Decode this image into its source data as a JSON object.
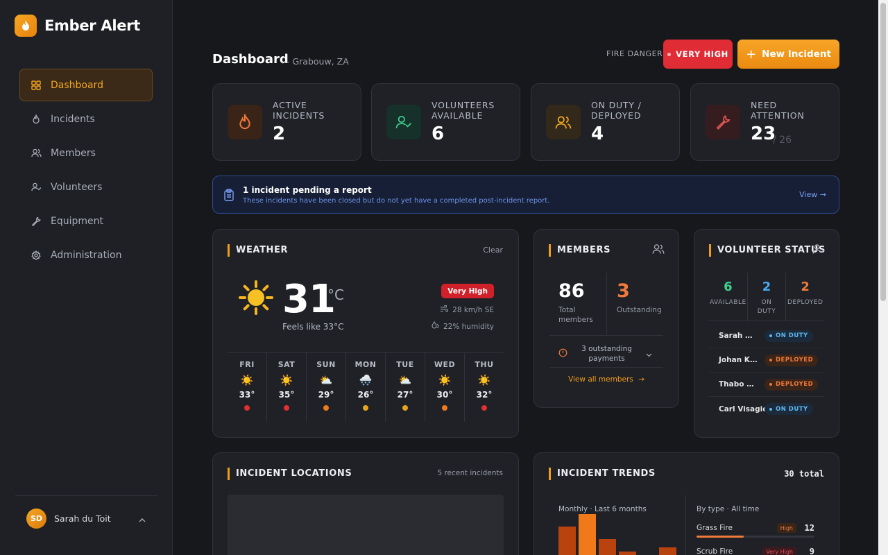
{
  "app": {
    "name": "Ember Alert"
  },
  "sidebar": {
    "items": [
      {
        "label": "Dashboard",
        "icon": "grid-icon",
        "active": true
      },
      {
        "label": "Incidents",
        "icon": "flame-icon"
      },
      {
        "label": "Members",
        "icon": "users-icon"
      },
      {
        "label": "Volunteers",
        "icon": "user-check-icon"
      },
      {
        "label": "Equipment",
        "icon": "wrench-icon"
      },
      {
        "label": "Administration",
        "icon": "gear-icon"
      }
    ],
    "user": {
      "initials": "SD",
      "name": "Sarah du Toit"
    }
  },
  "header": {
    "title": "Dashboard",
    "location": "— Grabouw, ZA",
    "fire_danger_label": "FIRE DANGER",
    "fire_danger_value": "VERY HIGH",
    "new_incident_label": "New Incident"
  },
  "stats": [
    {
      "label": "ACTIVE INCIDENTS",
      "value": "2",
      "color": "#f07a3a"
    },
    {
      "label": "VOLUNTEERS AVAILABLE",
      "value": "6",
      "color": "#3ecf8e"
    },
    {
      "label": "ON DUTY / DEPLOYED",
      "value": "4",
      "color": "#f5a623"
    },
    {
      "label": "NEED ATTENTION",
      "value": "23",
      "sub": "/ 26",
      "color": "#e25555"
    }
  ],
  "notice": {
    "title": "1 incident pending a report",
    "subtitle": "These incidents have been closed but do not yet have a completed post-incident report.",
    "link": "View →"
  },
  "weather": {
    "title": "WEATHER",
    "condition": "Clear",
    "temp": "31",
    "unit": "°C",
    "feels": "Feels like 33°C",
    "danger": "Very High",
    "wind": "28 km/h SE",
    "humidity": "22% humidity",
    "forecast": [
      {
        "day": "FRI",
        "icon": "☀️",
        "temp": "33°",
        "color": "#e0302f"
      },
      {
        "day": "SAT",
        "icon": "☀️",
        "temp": "35°",
        "color": "#e0302f"
      },
      {
        "day": "SUN",
        "icon": "⛅",
        "temp": "29°",
        "color": "#f07a1a"
      },
      {
        "day": "MON",
        "icon": "🌨️",
        "temp": "26°",
        "color": "#e8a31a"
      },
      {
        "day": "TUE",
        "icon": "⛅",
        "temp": "27°",
        "color": "#e8a31a"
      },
      {
        "day": "WED",
        "icon": "☀️",
        "temp": "30°",
        "color": "#f07a1a"
      },
      {
        "day": "THU",
        "icon": "☀️",
        "temp": "32°",
        "color": "#e0302f"
      }
    ]
  },
  "members": {
    "title": "MEMBERS",
    "total": "86",
    "total_label": "Total members",
    "outstanding": "3",
    "outstanding_label": "Outstanding",
    "payments": "3 outstanding payments",
    "link": "View all members"
  },
  "volunteer_status": {
    "title": "VOLUNTEER STATUS",
    "stats": [
      {
        "value": "6",
        "label": "AVAILABLE",
        "color": "#3ecf8e"
      },
      {
        "value": "2",
        "label": "ON DUTY",
        "color": "#4aa8f0"
      },
      {
        "value": "2",
        "label": "DEPLOYED",
        "color": "#f07a3a"
      }
    ],
    "rows": [
      {
        "name": "Sarah du Toit",
        "status": "ON DUTY",
        "kind": "duty"
      },
      {
        "name": "Johan Kruger",
        "status": "DEPLOYED",
        "kind": "dep"
      },
      {
        "name": "Thabo Nkosi",
        "status": "DEPLOYED",
        "kind": "dep"
      },
      {
        "name": "Carl Visagie",
        "status": "ON DUTY",
        "kind": "duty"
      }
    ]
  },
  "locations": {
    "title": "INCIDENT LOCATIONS",
    "meta": "5 recent incidents"
  },
  "trends": {
    "title": "INCIDENT TRENDS",
    "total": "30 total",
    "monthly_label": "Monthly · Last 6 months",
    "bytype_label": "By type · All time",
    "monthly_values": [
      {
        "value": 7,
        "color": "#b8430e"
      },
      {
        "value": 10,
        "color": "#f07a1a"
      },
      {
        "value": 4,
        "color": "#b8430e"
      },
      {
        "value": 1,
        "color": "#b8430e"
      },
      {
        "value": 0,
        "color": "#b8430e"
      },
      {
        "value": 2,
        "color": "#b8430e"
      }
    ],
    "types": [
      {
        "name": "Grass Fire",
        "badge": "High",
        "count": "12",
        "share": 0.4,
        "badge_bg": "#3b2418",
        "badge_color": "#f07a3a"
      },
      {
        "name": "Scrub Fire",
        "badge": "Very High",
        "count": "9",
        "share": 0.3,
        "badge_bg": "#3a1a1e",
        "badge_color": "#ef4a52"
      }
    ]
  }
}
